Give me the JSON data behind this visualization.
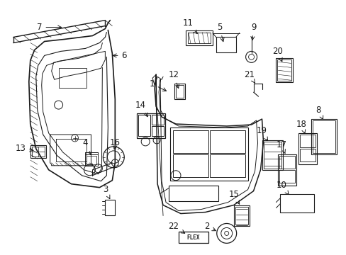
{
  "bg_color": "#ffffff",
  "line_color": "#1a1a1a",
  "lw": 0.9,
  "fs": 8.5,
  "figsize": [
    4.89,
    3.6
  ],
  "dpi": 100
}
